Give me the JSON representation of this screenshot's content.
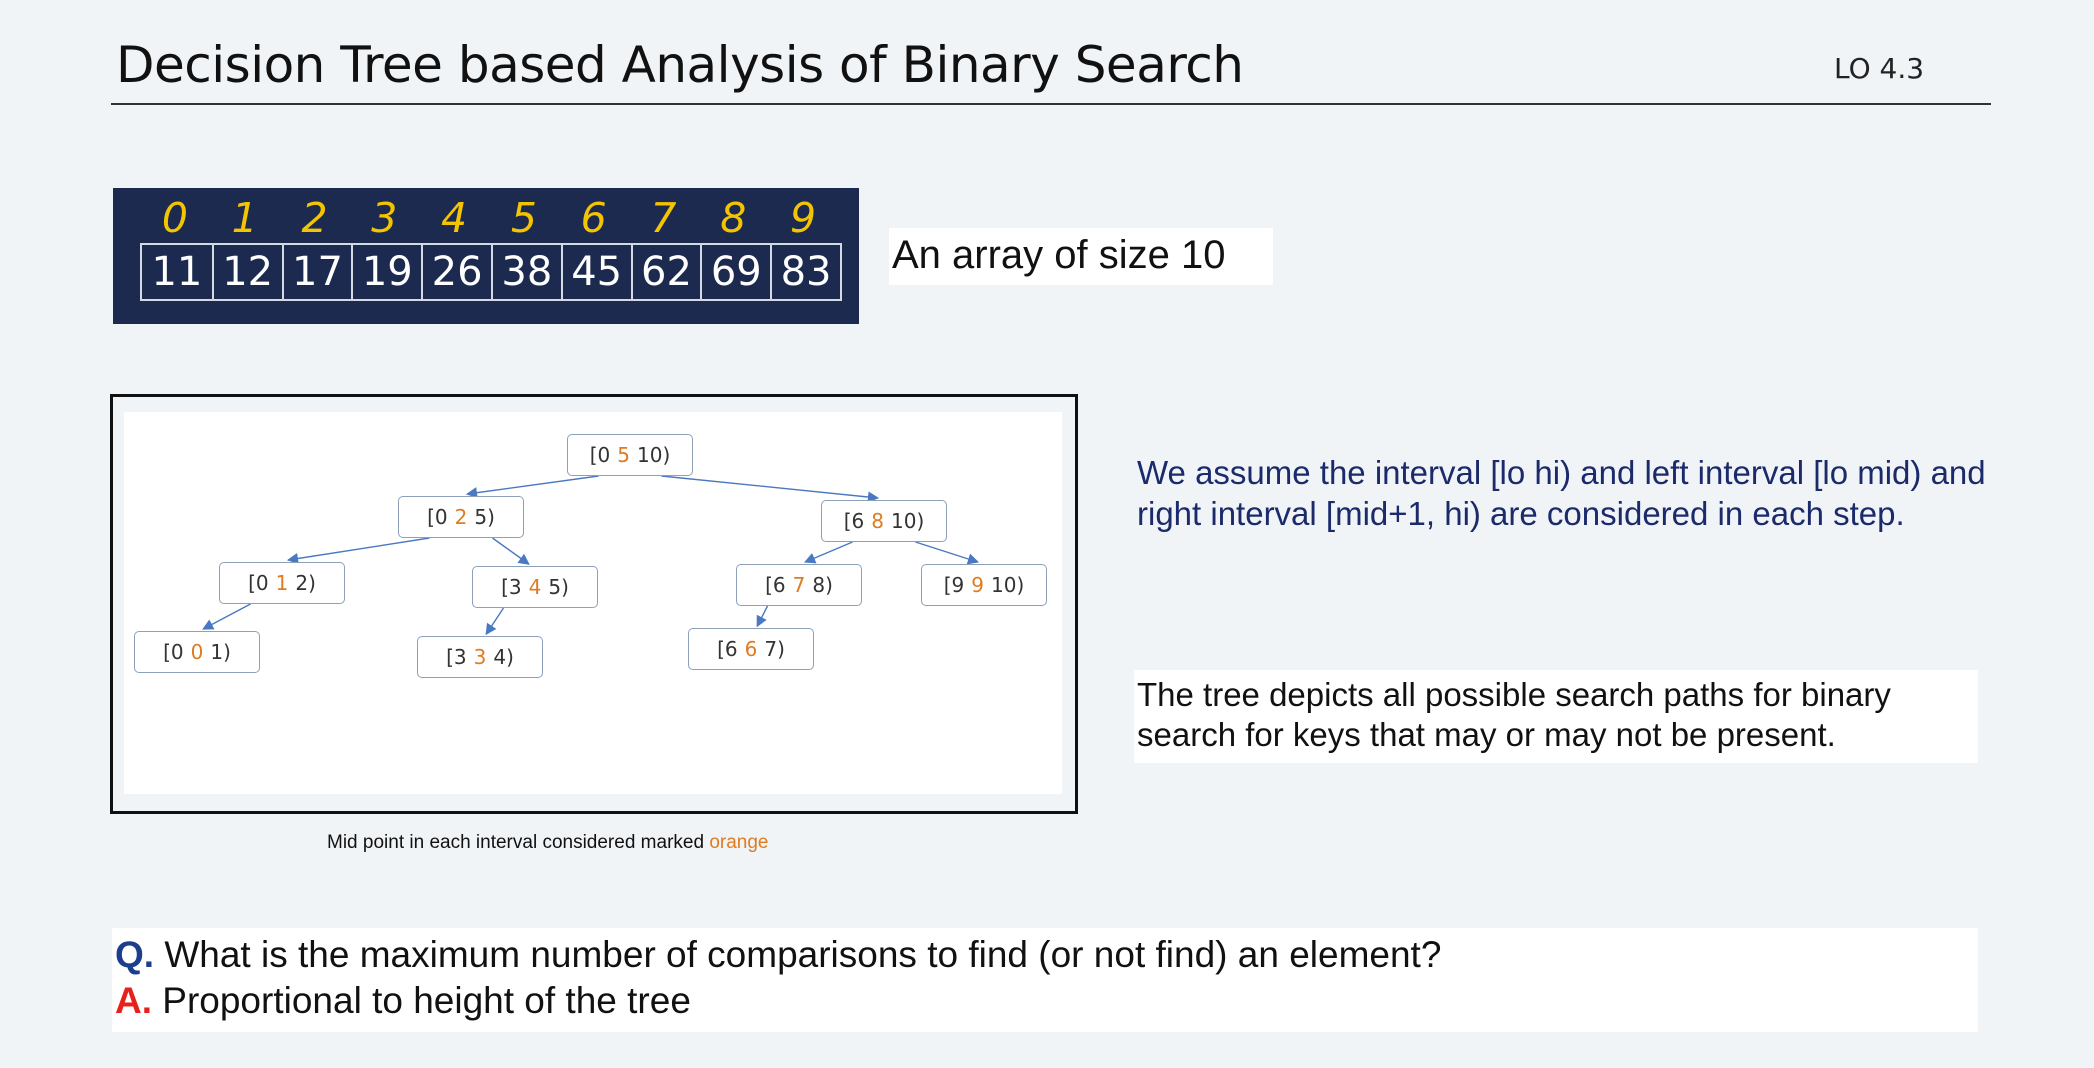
{
  "header": {
    "title": "Decision Tree based Analysis of Binary Search",
    "lo_tag": "LO 4.3"
  },
  "array": {
    "indices": [
      "0",
      "1",
      "2",
      "3",
      "4",
      "5",
      "6",
      "7",
      "8",
      "9"
    ],
    "values": [
      "11",
      "12",
      "17",
      "19",
      "26",
      "38",
      "45",
      "62",
      "69",
      "83"
    ],
    "caption": "An array of size 10"
  },
  "tree": {
    "nodes": [
      {
        "id": "n0510",
        "lo": "[0",
        "mid": "5",
        "hi": "10)"
      },
      {
        "id": "n025",
        "lo": "[0",
        "mid": "2",
        "hi": "5)"
      },
      {
        "id": "n6810",
        "lo": "[6",
        "mid": "8",
        "hi": "10)"
      },
      {
        "id": "n012",
        "lo": "[0",
        "mid": "1",
        "hi": "2)"
      },
      {
        "id": "n345",
        "lo": "[3",
        "mid": "4",
        "hi": "5)"
      },
      {
        "id": "n678",
        "lo": "[6",
        "mid": "7",
        "hi": "8)"
      },
      {
        "id": "n9910",
        "lo": "[9",
        "mid": "9",
        "hi": "10)"
      },
      {
        "id": "n001",
        "lo": "[0",
        "mid": "0",
        "hi": "1)"
      },
      {
        "id": "n334",
        "lo": "[3",
        "mid": "3",
        "hi": "4)"
      },
      {
        "id": "n667",
        "lo": "[6",
        "mid": "6",
        "hi": "7)"
      }
    ],
    "edges": [
      [
        "n0510",
        "n025"
      ],
      [
        "n0510",
        "n6810"
      ],
      [
        "n025",
        "n012"
      ],
      [
        "n025",
        "n345"
      ],
      [
        "n6810",
        "n678"
      ],
      [
        "n6810",
        "n9910"
      ],
      [
        "n012",
        "n001"
      ],
      [
        "n345",
        "n334"
      ],
      [
        "n678",
        "n667"
      ]
    ],
    "note_prefix": "Mid point in each interval considered marked ",
    "note_highlight": "orange",
    "mid_color": "#e07b1f",
    "edge_color": "#4a78c2"
  },
  "assumption_text": "We assume the interval [lo hi) and left interval [lo mid) and right interval [mid+1, hi) are considered in each step.",
  "paths_text": "The tree depicts all possible search paths for binary search for keys that may or may not be present.",
  "qa": {
    "q_label": "Q.",
    "question": " What is the maximum number of comparisons to find (or not find) an element?",
    "a_label": "A.",
    "answer": " Proportional to height of the tree"
  }
}
